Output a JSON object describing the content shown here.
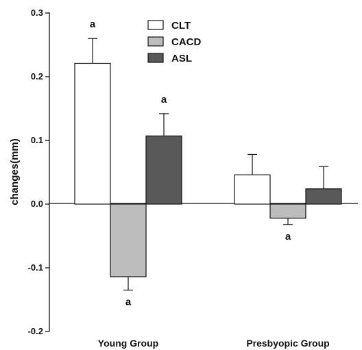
{
  "chart_data": {
    "type": "bar",
    "ylabel": "changes(mm)",
    "ylim": [
      -0.2,
      0.3
    ],
    "yticks": [
      "-0.2",
      "-0.1",
      "0.0",
      "0.1",
      "0.2",
      "0.3"
    ],
    "categories": [
      "Young Group",
      "Presbyopic Group"
    ],
    "legend_position": "top-center",
    "series": [
      {
        "name": "CLT",
        "color": "#ffffff",
        "values": [
          0.221,
          0.046
        ],
        "errors": [
          0.039,
          0.032
        ],
        "sig": [
          "a",
          ""
        ]
      },
      {
        "name": "CACD",
        "color": "#bdbdbd",
        "values": [
          -0.114,
          -0.022
        ],
        "errors": [
          0.021,
          0.01
        ],
        "sig": [
          "a",
          "a"
        ]
      },
      {
        "name": "ASL",
        "color": "#595959",
        "values": [
          0.107,
          0.024
        ],
        "errors": [
          0.035,
          0.035
        ],
        "sig": [
          "a",
          ""
        ]
      }
    ]
  }
}
